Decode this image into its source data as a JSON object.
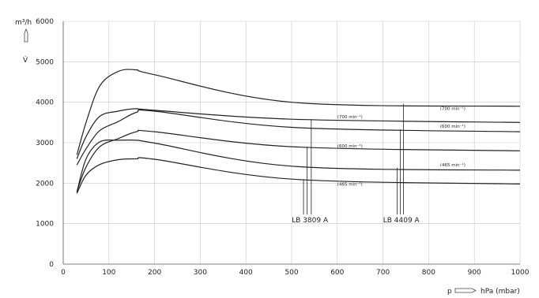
{
  "chart_data": {
    "type": "line",
    "y_unit": "m³/h",
    "y_symbol": "V̇",
    "x_prefix": "p",
    "x_unit": "hPa (mbar)",
    "xlim": [
      0,
      1000
    ],
    "ylim": [
      0,
      6000
    ],
    "x_ticks": [
      0,
      100,
      200,
      300,
      400,
      500,
      600,
      700,
      800,
      900,
      1000
    ],
    "y_ticks": [
      0,
      1000,
      2000,
      3000,
      4000,
      5000,
      6000
    ],
    "grid": true,
    "series": [
      {
        "label": "",
        "points": [
          [
            30,
            2700
          ],
          [
            50,
            3500
          ],
          [
            80,
            4400
          ],
          [
            120,
            4760
          ],
          [
            160,
            4800
          ],
          [
            200,
            4680
          ],
          [
            500,
            4000
          ],
          [
            1000,
            3900
          ]
        ]
      },
      {
        "label": "(700 min⁻¹)",
        "points": [
          [
            30,
            2600
          ],
          [
            50,
            3150
          ],
          [
            80,
            3650
          ],
          [
            120,
            3780
          ],
          [
            160,
            3840
          ],
          [
            200,
            3800
          ],
          [
            500,
            3580
          ],
          [
            1000,
            3500
          ]
        ]
      },
      {
        "label": "(600 min⁻¹)",
        "points": [
          [
            30,
            2450
          ],
          [
            50,
            2850
          ],
          [
            80,
            3300
          ],
          [
            120,
            3520
          ],
          [
            160,
            3750
          ],
          [
            200,
            3780
          ],
          [
            500,
            3380
          ],
          [
            1000,
            3270
          ]
        ]
      },
      {
        "label": "(600 min⁻¹)",
        "points": [
          [
            30,
            1800
          ],
          [
            50,
            2400
          ],
          [
            80,
            2900
          ],
          [
            120,
            3100
          ],
          [
            160,
            3270
          ],
          [
            200,
            3270
          ],
          [
            500,
            2900
          ],
          [
            1000,
            2800
          ]
        ]
      },
      {
        "label": "(465 min⁻¹)",
        "points": [
          [
            30,
            1780
          ],
          [
            50,
            2600
          ],
          [
            80,
            3020
          ],
          [
            120,
            3060
          ],
          [
            160,
            3060
          ],
          [
            200,
            2990
          ],
          [
            500,
            2420
          ],
          [
            1000,
            2320
          ]
        ]
      },
      {
        "label": "(465 min⁻¹)",
        "points": [
          [
            30,
            1750
          ],
          [
            50,
            2200
          ],
          [
            80,
            2460
          ],
          [
            120,
            2580
          ],
          [
            160,
            2600
          ],
          [
            200,
            2590
          ],
          [
            500,
            2100
          ],
          [
            1000,
            1980
          ]
        ]
      }
    ],
    "curve_labels": [
      {
        "text": "(700 min⁻¹)",
        "x": 825,
        "y": 3810
      },
      {
        "text": "(700 min⁻¹)",
        "x": 600,
        "y": 3600
      },
      {
        "text": "(600 min⁻¹)",
        "x": 825,
        "y": 3370
      },
      {
        "text": "(600 min⁻¹)",
        "x": 600,
        "y": 2880
      },
      {
        "text": "(465 min⁻¹)",
        "x": 825,
        "y": 2420
      },
      {
        "text": "(465 min⁻¹)",
        "x": 600,
        "y": 1940
      }
    ],
    "model_labels": [
      {
        "text": "LB 3809 A",
        "x_values": [
          526,
          534,
          543
        ],
        "y_tops": [
          2100,
          2900,
          3580
        ],
        "x": 540,
        "y": 1030
      },
      {
        "text": "LB 4409 A",
        "x_values": [
          731,
          738,
          745
        ],
        "y_tops": [
          2380,
          3330,
          3960
        ],
        "x": 740,
        "y": 1030
      }
    ]
  }
}
